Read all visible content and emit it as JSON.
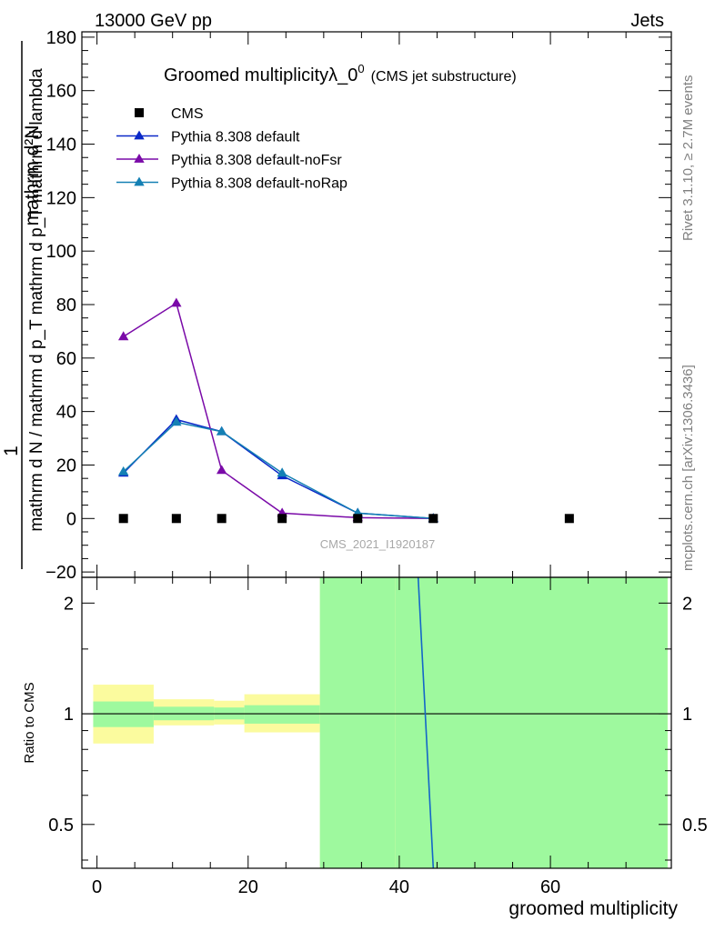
{
  "header": {
    "energy_label": "13000 GeV pp",
    "process_label": "Jets"
  },
  "side_labels": {
    "rivet": "Rivet 3.1.10, ≥ 2.7M events",
    "mcplots": "mcplots.cern.ch [arXiv:1306.3436]"
  },
  "watermark": "CMS_2021_I1920187",
  "chart_data": {
    "type": "line",
    "title": "Groomed multiplicityλ_0",
    "title_sup": "0",
    "subtitle": "(CMS jet substructure)",
    "ylabel_top": "1",
    "ylabel_num": "mathrm d²N",
    "ylabel_den": "mathrm d N / mathrm d p_T mathrm d p_T mathrm d lambda",
    "xlabel": "groomed multiplicity",
    "ratio_ylabel": "Ratio to CMS",
    "xlim": [
      -2,
      76
    ],
    "ylim": [
      -22,
      182
    ],
    "ratio_ylim": [
      0.38,
      2.35
    ],
    "x_ticks": [
      "0",
      "20",
      "40",
      "60"
    ],
    "y_ticks": [
      "−20",
      "0",
      "20",
      "40",
      "60",
      "80",
      "100",
      "120",
      "140",
      "160",
      "180"
    ],
    "ratio_ticks": [
      "0.5",
      "1",
      "2"
    ],
    "legend_position": "top-left",
    "data_points": {
      "name": "CMS",
      "x": [
        3.5,
        10.5,
        16.5,
        24.5,
        34.5,
        44.5,
        62.5
      ],
      "y": [
        0,
        0,
        0,
        0,
        0,
        0,
        0
      ]
    },
    "series": [
      {
        "name": "Pythia 8.308 default",
        "color": "#0a28c8",
        "x": [
          3.5,
          10.5,
          16.5,
          24.5,
          34.5,
          44.5
        ],
        "y": [
          17,
          37,
          32.5,
          16,
          2,
          0
        ]
      },
      {
        "name": "Pythia 8.308 default-noFsr",
        "color": "#7a0aa8",
        "x": [
          3.5,
          10.5,
          16.5,
          24.5,
          34.5,
          44.5
        ],
        "y": [
          68,
          80.5,
          18,
          2,
          0.3,
          0
        ]
      },
      {
        "name": "Pythia 8.308 default-noRap",
        "color": "#1480b4",
        "x": [
          3.5,
          10.5,
          16.5,
          24.5,
          34.5,
          44.5
        ],
        "y": [
          17.5,
          36,
          32.5,
          17,
          2,
          0
        ]
      }
    ],
    "ratio_bands": {
      "edges": [
        -0.5,
        7.5,
        15.5,
        19.5,
        29.5,
        39.5,
        75.5
      ],
      "stat_low": [
        0.92,
        0.96,
        0.965,
        0.94,
        0.38,
        0.38
      ],
      "stat_high": [
        1.08,
        1.045,
        1.04,
        1.055,
        2.35,
        2.35
      ],
      "total_low": [
        0.83,
        0.93,
        0.935,
        0.89,
        0.38,
        0.38
      ],
      "total_high": [
        1.2,
        1.095,
        1.085,
        1.13,
        2.35,
        2.35
      ],
      "stat_color": "#9ef99e",
      "total_color": "#fbfb9e"
    },
    "ratio_line": {
      "x": [
        42.5,
        44.5
      ],
      "y": [
        2.35,
        0.38
      ],
      "color": "#1466c8"
    }
  }
}
